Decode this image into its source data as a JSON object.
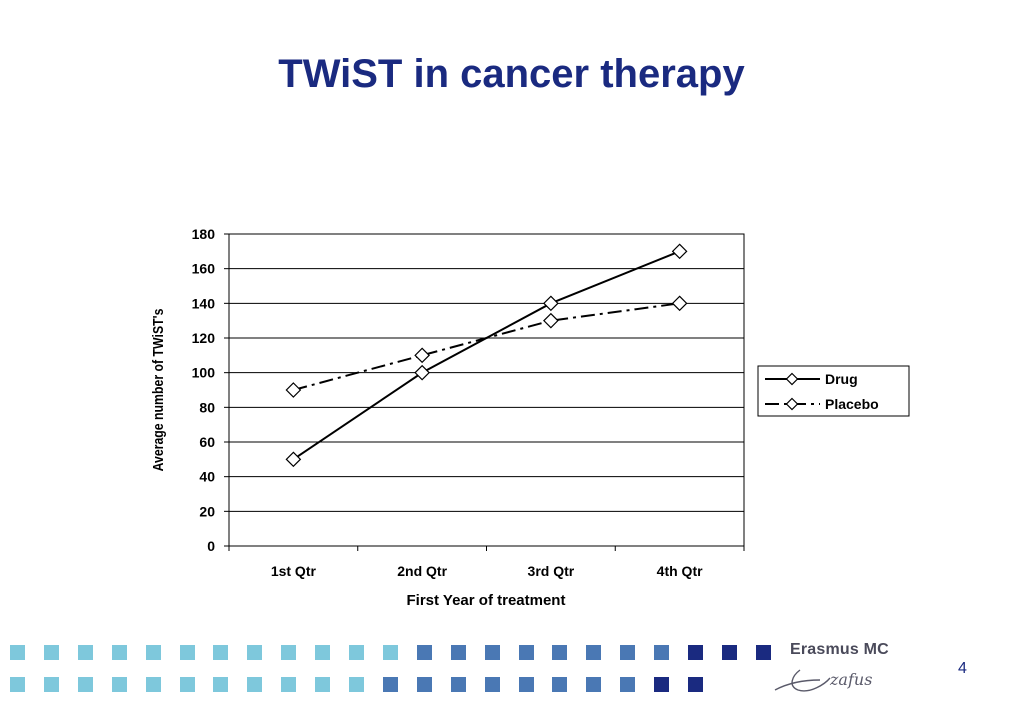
{
  "slide": {
    "title": "TWiST in cancer therapy",
    "page_number": "4",
    "logo_text": "Erasmus MC",
    "logo_signature": "zafus"
  },
  "chart_data": {
    "type": "line",
    "categories": [
      "1st Qtr",
      "2nd Qtr",
      "3rd Qtr",
      "4th Qtr"
    ],
    "series": [
      {
        "name": "Drug",
        "values": [
          50,
          100,
          140,
          170
        ],
        "line_style": "solid",
        "marker": "diamond"
      },
      {
        "name": "Placebo",
        "values": [
          90,
          110,
          130,
          140
        ],
        "line_style": "dash-dot",
        "marker": "diamond"
      }
    ],
    "xlabel": "First Year of treatment",
    "ylabel": "Average number of TWiST's",
    "ylim": [
      0,
      180
    ],
    "yticks": [
      "0",
      "20",
      "40",
      "60",
      "80",
      "100",
      "120",
      "140",
      "160",
      "180"
    ],
    "grid": true,
    "legend": "right"
  },
  "colors": {
    "title": "#1a2a80",
    "light_square": "#7ec8dc",
    "mid_square": "#4a78b4",
    "dark_square": "#1a2a80"
  }
}
